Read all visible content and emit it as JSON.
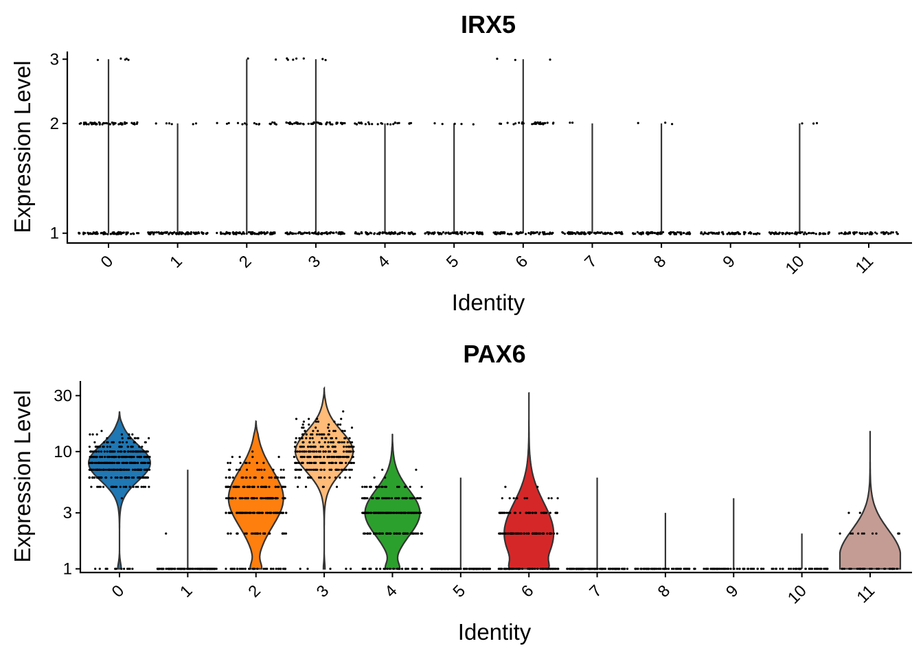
{
  "chart_data": [
    {
      "type": "violin",
      "title": "IRX5",
      "xlabel": "Identity",
      "ylabel": "Expression Level",
      "y_scale": "log",
      "ylim": [
        0.94,
        3.15
      ],
      "y_ticks": [
        1,
        2,
        3
      ],
      "y_tick_labels": [
        "1",
        "2",
        "3"
      ],
      "categories": [
        "0",
        "1",
        "2",
        "3",
        "4",
        "5",
        "6",
        "7",
        "8",
        "9",
        "10",
        "11"
      ],
      "series": [
        {
          "category": "0",
          "color": "#1F77B4",
          "max": 3,
          "counts": {
            "1": 70,
            "2": 55,
            "3": 5
          }
        },
        {
          "category": "1",
          "color": "#AEC7E8",
          "max": 2,
          "counts": {
            "1": 80,
            "2": 6
          }
        },
        {
          "category": "2",
          "color": "#FF7F0E",
          "max": 3,
          "counts": {
            "1": 75,
            "2": 18,
            "3": 2
          }
        },
        {
          "category": "3",
          "color": "#FFBB78",
          "max": 3,
          "counts": {
            "1": 70,
            "2": 50,
            "3": 7
          }
        },
        {
          "category": "4",
          "color": "#2CA02C",
          "max": 2,
          "counts": {
            "1": 70,
            "2": 25
          }
        },
        {
          "category": "5",
          "color": "#98DF8A",
          "max": 2,
          "counts": {
            "1": 70,
            "2": 5
          }
        },
        {
          "category": "6",
          "color": "#D62728",
          "max": 3,
          "counts": {
            "1": 70,
            "2": 30,
            "3": 3
          }
        },
        {
          "category": "7",
          "color": "#FF9896",
          "max": 2,
          "counts": {
            "1": 75,
            "2": 2
          }
        },
        {
          "category": "8",
          "color": "#9467BD",
          "max": 2,
          "counts": {
            "1": 70,
            "2": 3
          }
        },
        {
          "category": "9",
          "color": "#C5B0D5",
          "max": 1,
          "counts": {
            "1": 60
          }
        },
        {
          "category": "10",
          "color": "#8C564B",
          "max": 2,
          "counts": {
            "1": 65,
            "2": 3
          }
        },
        {
          "category": "11",
          "color": "#C49C94",
          "max": 1,
          "counts": {
            "1": 55
          }
        }
      ]
    },
    {
      "type": "violin",
      "title": "PAX6",
      "xlabel": "Identity",
      "ylabel": "Expression Level",
      "y_scale": "log",
      "ylim": [
        0.93,
        40
      ],
      "y_ticks": [
        1,
        3,
        10,
        30
      ],
      "y_tick_labels": [
        "1",
        "3",
        "10",
        "30"
      ],
      "categories": [
        "0",
        "1",
        "2",
        "3",
        "4",
        "5",
        "6",
        "7",
        "8",
        "9",
        "10",
        "11"
      ],
      "series": [
        {
          "category": "0",
          "color": "#1F77B4",
          "max": 22,
          "mode": 8,
          "spread": 0.35,
          "maxw": 45,
          "n": 420,
          "low_frac": 0.04
        },
        {
          "category": "1",
          "color": "#AEC7E8",
          "max": 7,
          "mode": 1,
          "spread": 0.3,
          "maxw": 0,
          "n": 110,
          "low_frac": 0.75
        },
        {
          "category": "2",
          "color": "#FF7F0E",
          "max": 18,
          "mode": 4,
          "spread": 0.55,
          "maxw": 40,
          "n": 300,
          "low_frac": 0.12
        },
        {
          "category": "3",
          "color": "#FFBB78",
          "max": 35,
          "mode": 10,
          "spread": 0.4,
          "maxw": 42,
          "n": 310,
          "low_frac": 0.02
        },
        {
          "category": "4",
          "color": "#2CA02C",
          "max": 14,
          "mode": 3,
          "spread": 0.45,
          "maxw": 40,
          "n": 260,
          "low_frac": 0.15
        },
        {
          "category": "5",
          "color": "#98DF8A",
          "max": 6,
          "mode": 1,
          "spread": 0.3,
          "maxw": 0,
          "n": 120,
          "low_frac": 0.7
        },
        {
          "category": "6",
          "color": "#D62728",
          "max": 32,
          "mode": 2,
          "spread": 0.6,
          "maxw": 36,
          "n": 170,
          "low_frac": 0.2
        },
        {
          "category": "7",
          "color": "#FF9896",
          "max": 6,
          "mode": 1,
          "spread": 0.3,
          "maxw": 0,
          "n": 100,
          "low_frac": 0.72
        },
        {
          "category": "8",
          "color": "#9467BD",
          "max": 3,
          "mode": 1,
          "spread": 0.3,
          "maxw": 0,
          "n": 60,
          "low_frac": 0.8
        },
        {
          "category": "9",
          "color": "#C5B0D5",
          "max": 4,
          "mode": 1,
          "spread": 0.3,
          "maxw": 0,
          "n": 50,
          "low_frac": 0.85
        },
        {
          "category": "10",
          "color": "#8C564B",
          "max": 2,
          "mode": 1,
          "spread": 0.3,
          "maxw": 0,
          "n": 40,
          "low_frac": 0.9
        },
        {
          "category": "11",
          "color": "#C49C94",
          "max": 15,
          "mode": 1.3,
          "spread": 0.5,
          "maxw": 44,
          "n": 40,
          "low_frac": 0.3
        }
      ]
    }
  ]
}
